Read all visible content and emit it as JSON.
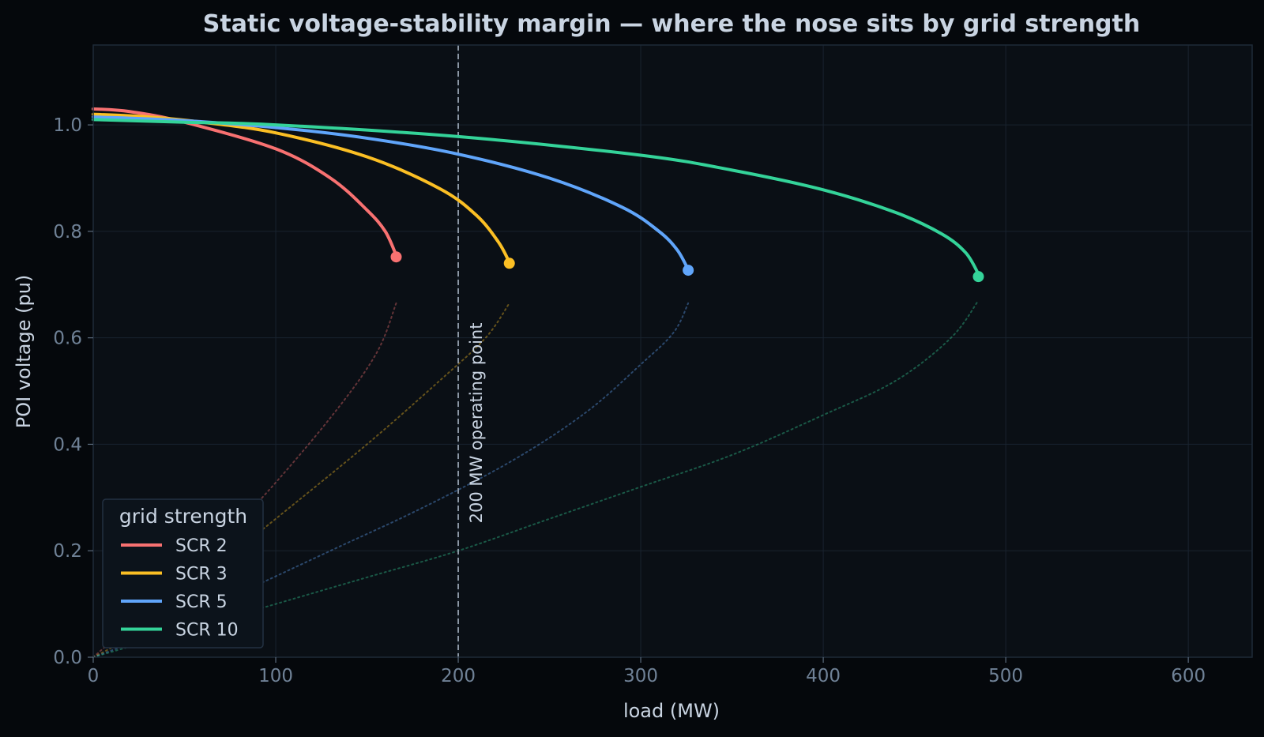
{
  "chart_data": {
    "type": "line",
    "title": "Static voltage-stability margin — where the nose sits by grid strength",
    "xlabel": "load (MW)",
    "ylabel": "POI voltage (pu)",
    "xlim": [
      0,
      635
    ],
    "ylim": [
      0,
      1.15
    ],
    "x_ticks": [
      0,
      100,
      200,
      300,
      400,
      500,
      600
    ],
    "y_ticks": [
      0.0,
      0.2,
      0.4,
      0.6,
      0.8,
      1.0
    ],
    "x_tick_labels": [
      "0",
      "100",
      "200",
      "300",
      "400",
      "500",
      "600"
    ],
    "y_tick_labels": [
      "0.0",
      "0.2",
      "0.4",
      "0.6",
      "0.8",
      "1.0"
    ],
    "grid": true,
    "legend": {
      "title": "grid strength",
      "placement": "lower-left"
    },
    "annotation": {
      "x": 200,
      "label": "200 MW operating point",
      "style": "dashed"
    },
    "background": "#0a0f15",
    "series": [
      {
        "name": "SCR 2",
        "color": "#f87171",
        "upper": {
          "x": [
            0,
            20,
            50,
            100,
            130,
            150,
            160,
            166
          ],
          "y": [
            1.03,
            1.025,
            1.005,
            0.955,
            0.9,
            0.84,
            0.8,
            0.755
          ]
        },
        "nose": {
          "x": 166,
          "y": 0.752
        },
        "lower": {
          "x": [
            0,
            10,
            50,
            90,
            130,
            155,
            166
          ],
          "y": [
            0.0,
            0.03,
            0.15,
            0.29,
            0.45,
            0.57,
            0.665
          ]
        }
      },
      {
        "name": "SCR 3",
        "color": "#fbbf24",
        "upper": {
          "x": [
            0,
            30,
            60,
            100,
            150,
            190,
            210,
            222,
            228
          ],
          "y": [
            1.02,
            1.015,
            1.005,
            0.985,
            0.94,
            0.88,
            0.83,
            0.78,
            0.742
          ]
        },
        "nose": {
          "x": 228,
          "y": 0.74
        },
        "lower": {
          "x": [
            0,
            20,
            60,
            100,
            150,
            190,
            215,
            228
          ],
          "y": [
            0.0,
            0.04,
            0.15,
            0.26,
            0.4,
            0.52,
            0.6,
            0.665
          ]
        }
      },
      {
        "name": "SCR 5",
        "color": "#60a5fa",
        "upper": {
          "x": [
            0,
            50,
            100,
            150,
            200,
            250,
            290,
            310,
            320,
            326
          ],
          "y": [
            1.015,
            1.008,
            0.995,
            0.975,
            0.945,
            0.9,
            0.845,
            0.8,
            0.765,
            0.728
          ]
        },
        "nose": {
          "x": 326,
          "y": 0.727
        },
        "lower": {
          "x": [
            0,
            30,
            80,
            130,
            180,
            230,
            270,
            300,
            318,
            326
          ],
          "y": [
            0.0,
            0.04,
            0.12,
            0.2,
            0.28,
            0.37,
            0.46,
            0.55,
            0.61,
            0.665
          ]
        }
      },
      {
        "name": "SCR 10",
        "color": "#34d399",
        "upper": {
          "x": [
            0,
            50,
            100,
            200,
            300,
            350,
            400,
            440,
            465,
            478,
            485
          ],
          "y": [
            1.01,
            1.005,
            1.0,
            0.978,
            0.943,
            0.915,
            0.878,
            0.835,
            0.795,
            0.76,
            0.72
          ]
        },
        "nose": {
          "x": 485,
          "y": 0.715
        },
        "lower": {
          "x": [
            0,
            50,
            100,
            150,
            200,
            250,
            300,
            350,
            400,
            440,
            470,
            485
          ],
          "y": [
            0.0,
            0.05,
            0.1,
            0.15,
            0.2,
            0.26,
            0.32,
            0.38,
            0.455,
            0.52,
            0.6,
            0.67
          ]
        }
      }
    ]
  }
}
